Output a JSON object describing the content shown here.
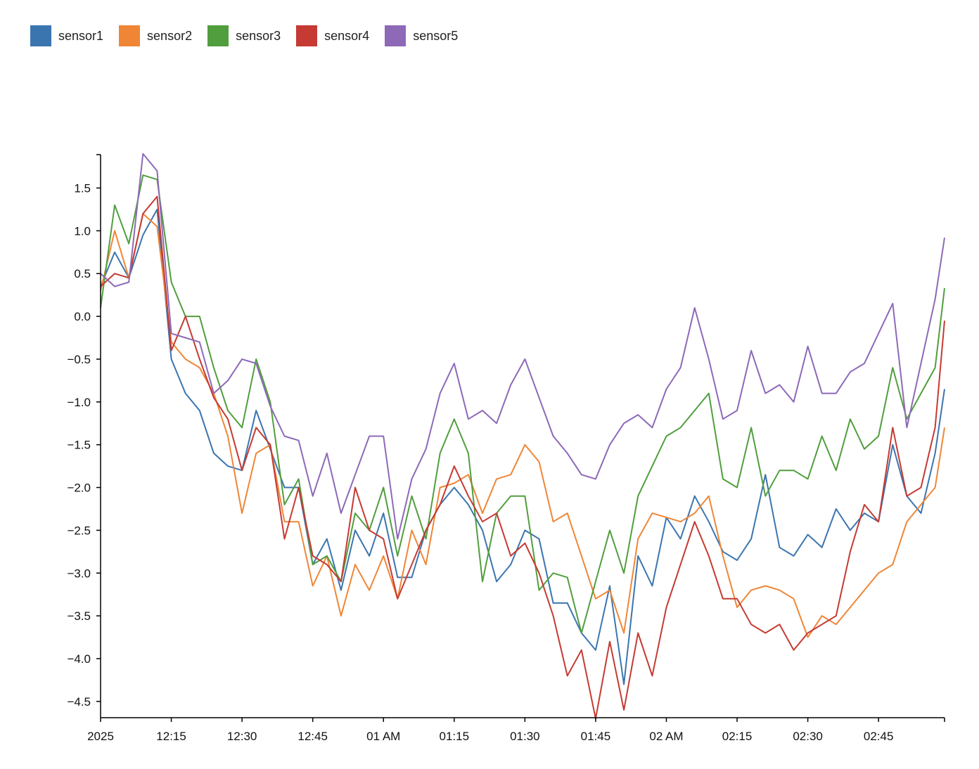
{
  "chart_data": {
    "type": "line",
    "title": "",
    "xlabel": "",
    "ylabel": "",
    "legend_position": "top-left",
    "grid": false,
    "x_minutes_from_start": [
      0,
      3,
      6,
      9,
      12,
      15,
      18,
      21,
      24,
      27,
      30,
      33,
      36,
      39,
      42,
      45,
      48,
      51,
      54,
      57,
      60,
      63,
      66,
      69,
      72,
      75,
      78,
      81,
      84,
      87,
      90,
      93,
      96,
      99,
      102,
      105,
      108,
      111,
      114,
      117,
      120,
      123,
      126,
      129,
      132,
      135,
      138,
      141,
      144,
      147,
      150,
      153,
      156,
      159,
      162,
      165,
      168,
      171,
      174,
      177,
      179
    ],
    "x_start": "2025-01-01 00:00",
    "xlim_minutes": [
      0,
      179
    ],
    "ylim": [
      -4.69,
      1.89
    ],
    "x_ticks": [
      {
        "minute": 0,
        "label": "2025"
      },
      {
        "minute": 15,
        "label": "12:15"
      },
      {
        "minute": 30,
        "label": "12:30"
      },
      {
        "minute": 45,
        "label": "12:45"
      },
      {
        "minute": 60,
        "label": "01 AM"
      },
      {
        "minute": 75,
        "label": "01:15"
      },
      {
        "minute": 90,
        "label": "01:30"
      },
      {
        "minute": 105,
        "label": "01:45"
      },
      {
        "minute": 120,
        "label": "02 AM"
      },
      {
        "minute": 135,
        "label": "02:15"
      },
      {
        "minute": 150,
        "label": "02:30"
      },
      {
        "minute": 165,
        "label": "02:45"
      }
    ],
    "y_ticks": [
      {
        "value": 1.5,
        "label": "1.5"
      },
      {
        "value": 1.0,
        "label": "1.0"
      },
      {
        "value": 0.5,
        "label": "0.5"
      },
      {
        "value": 0.0,
        "label": "0.0"
      },
      {
        "value": -0.5,
        "label": "−0.5"
      },
      {
        "value": -1.0,
        "label": "−1.0"
      },
      {
        "value": -1.5,
        "label": "−1.5"
      },
      {
        "value": -2.0,
        "label": "−2.0"
      },
      {
        "value": -2.5,
        "label": "−2.5"
      },
      {
        "value": -3.0,
        "label": "−3.0"
      },
      {
        "value": -3.5,
        "label": "−3.5"
      },
      {
        "value": -4.0,
        "label": "−4.0"
      },
      {
        "value": -4.5,
        "label": "−4.5"
      }
    ],
    "series": [
      {
        "name": "sensor1",
        "color": "#3b75af",
        "values": [
          0.35,
          0.75,
          0.45,
          0.95,
          1.25,
          -0.5,
          -0.9,
          -1.1,
          -1.6,
          -1.75,
          -1.8,
          -1.1,
          -1.55,
          -2.0,
          -2.0,
          -2.9,
          -2.6,
          -3.2,
          -2.5,
          -2.8,
          -2.3,
          -3.05,
          -3.05,
          -2.5,
          -2.2,
          -2.0,
          -2.2,
          -2.5,
          -3.1,
          -2.9,
          -2.5,
          -2.6,
          -3.35,
          -3.35,
          -3.7,
          -3.9,
          -3.15,
          -4.3,
          -2.8,
          -3.15,
          -2.35,
          -2.6,
          -2.1,
          -2.4,
          -2.75,
          -2.85,
          -2.6,
          -1.85,
          -2.7,
          -2.8,
          -2.55,
          -2.7,
          -2.25,
          -2.5,
          -2.3,
          -2.4,
          -1.5,
          -2.1,
          -2.3,
          -1.6,
          -0.85
        ]
      },
      {
        "name": "sensor2",
        "color": "#ef8636",
        "values": [
          0.3,
          1.0,
          0.45,
          1.2,
          1.05,
          -0.3,
          -0.5,
          -0.6,
          -0.9,
          -1.4,
          -2.3,
          -1.6,
          -1.5,
          -2.4,
          -2.4,
          -3.15,
          -2.8,
          -3.5,
          -2.9,
          -3.2,
          -2.8,
          -3.3,
          -2.5,
          -2.9,
          -2.0,
          -1.95,
          -1.85,
          -2.3,
          -1.9,
          -1.85,
          -1.5,
          -1.7,
          -2.4,
          -2.3,
          -2.8,
          -3.3,
          -3.2,
          -3.7,
          -2.6,
          -2.3,
          -2.35,
          -2.4,
          -2.3,
          -2.1,
          -2.8,
          -3.4,
          -3.2,
          -3.15,
          -3.2,
          -3.3,
          -3.75,
          -3.5,
          -3.6,
          -3.4,
          -3.2,
          -3.0,
          -2.9,
          -2.4,
          -2.2,
          -2.0,
          -1.3
        ]
      },
      {
        "name": "sensor3",
        "color": "#519e3e",
        "values": [
          0.1,
          1.3,
          0.85,
          1.65,
          1.6,
          0.4,
          0.0,
          0.0,
          -0.6,
          -1.1,
          -1.3,
          -0.5,
          -1.0,
          -2.2,
          -1.9,
          -2.9,
          -2.8,
          -3.1,
          -2.3,
          -2.5,
          -2.0,
          -2.8,
          -2.1,
          -2.6,
          -1.6,
          -1.2,
          -1.6,
          -3.1,
          -2.3,
          -2.1,
          -2.1,
          -3.2,
          -3.0,
          -3.05,
          -3.7,
          -3.1,
          -2.5,
          -3.0,
          -2.1,
          -1.75,
          -1.4,
          -1.3,
          -1.1,
          -0.9,
          -1.9,
          -2.0,
          -1.3,
          -2.1,
          -1.8,
          -1.8,
          -1.9,
          -1.4,
          -1.8,
          -1.2,
          -1.55,
          -1.4,
          -0.6,
          -1.2,
          -0.9,
          -0.6,
          0.33
        ]
      },
      {
        "name": "sensor4",
        "color": "#c53a32",
        "values": [
          0.35,
          0.5,
          0.45,
          1.2,
          1.4,
          -0.4,
          0.0,
          -0.5,
          -0.95,
          -1.2,
          -1.8,
          -1.3,
          -1.5,
          -2.6,
          -2.0,
          -2.8,
          -2.9,
          -3.1,
          -2.0,
          -2.5,
          -2.6,
          -3.3,
          -2.9,
          -2.5,
          -2.2,
          -1.75,
          -2.1,
          -2.4,
          -2.3,
          -2.8,
          -2.65,
          -3.0,
          -3.5,
          -4.2,
          -3.9,
          -4.7,
          -3.8,
          -4.6,
          -3.7,
          -4.2,
          -3.4,
          -2.9,
          -2.4,
          -2.8,
          -3.3,
          -3.3,
          -3.6,
          -3.7,
          -3.6,
          -3.9,
          -3.7,
          -3.6,
          -3.5,
          -2.75,
          -2.2,
          -2.4,
          -1.3,
          -2.1,
          -2.0,
          -1.3,
          -0.05
        ]
      },
      {
        "name": "sensor5",
        "color": "#8d69b8",
        "values": [
          0.5,
          0.35,
          0.4,
          1.9,
          1.7,
          -0.2,
          -0.25,
          -0.3,
          -0.9,
          -0.75,
          -0.5,
          -0.55,
          -1.05,
          -1.4,
          -1.45,
          -2.1,
          -1.6,
          -2.3,
          -1.85,
          -1.4,
          -1.4,
          -2.6,
          -1.9,
          -1.55,
          -0.9,
          -0.55,
          -1.2,
          -1.1,
          -1.25,
          -0.8,
          -0.5,
          -0.95,
          -1.4,
          -1.6,
          -1.85,
          -1.9,
          -1.5,
          -1.25,
          -1.15,
          -1.3,
          -0.85,
          -0.6,
          0.1,
          -0.5,
          -1.2,
          -1.1,
          -0.4,
          -0.9,
          -0.8,
          -1.0,
          -0.35,
          -0.9,
          -0.9,
          -0.65,
          -0.55,
          -0.2,
          0.15,
          -1.3,
          -0.55,
          0.2,
          0.92
        ]
      }
    ]
  }
}
